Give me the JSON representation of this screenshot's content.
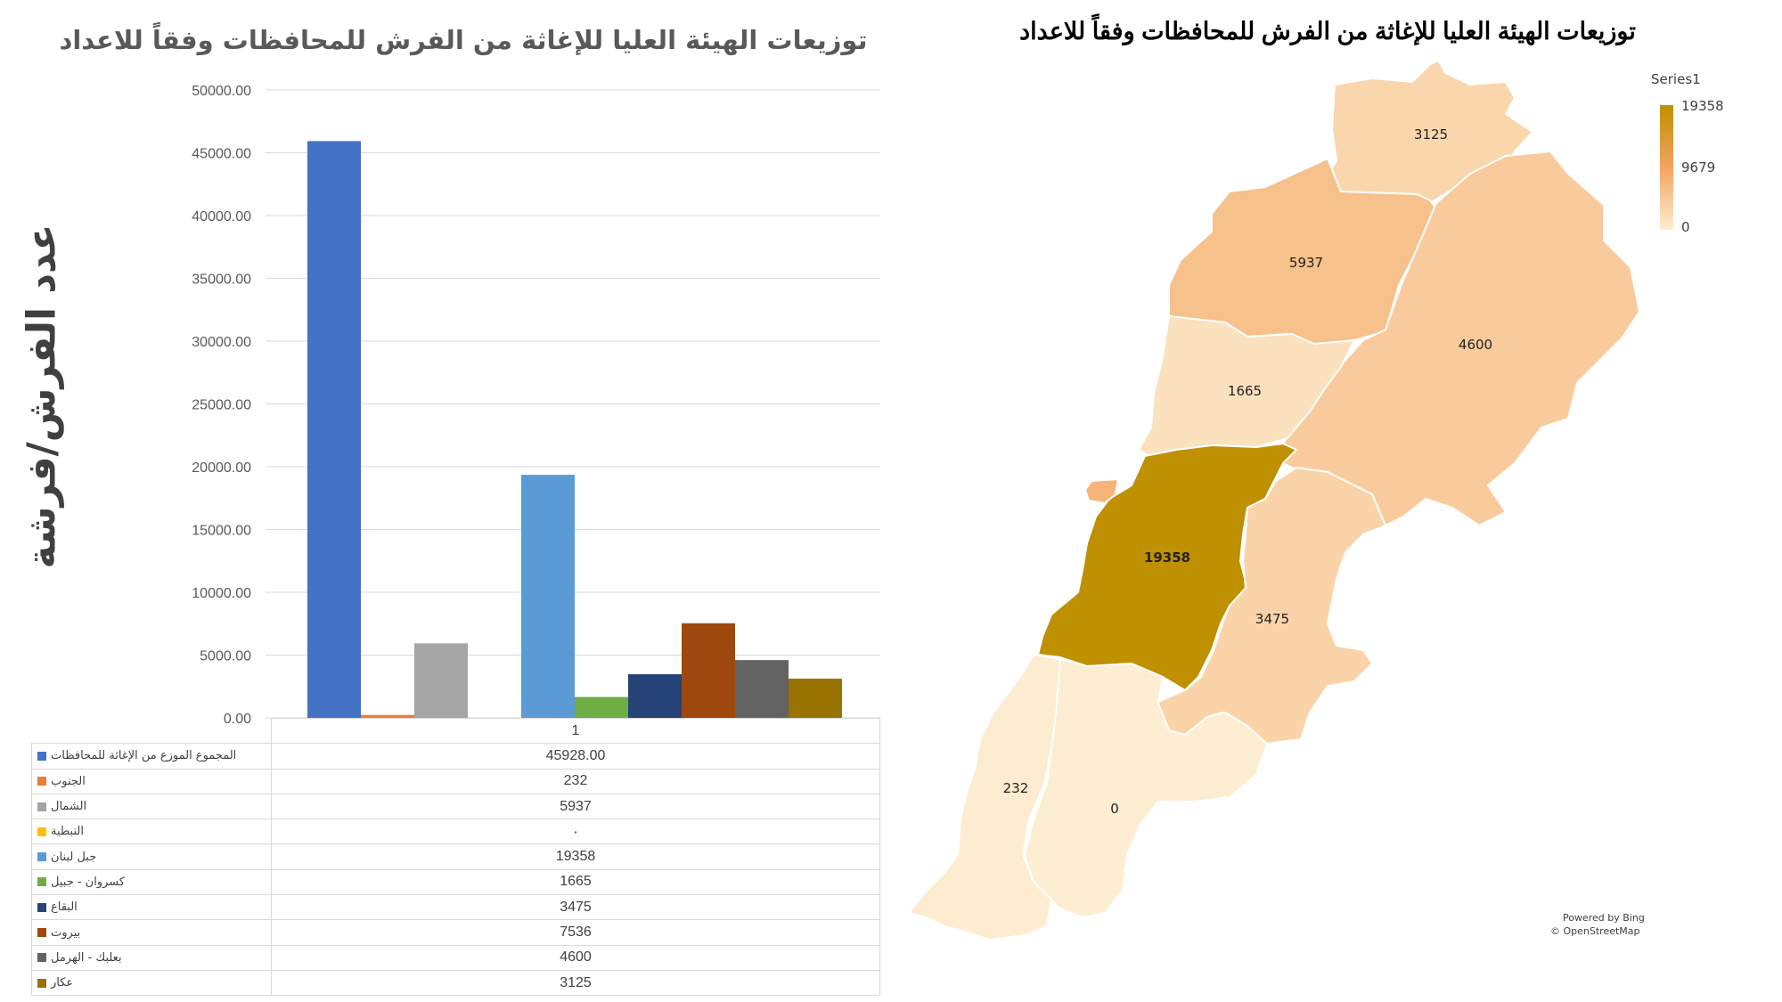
{
  "chart_data": [
    {
      "type": "bar",
      "title": "توزيعات الهيئة العليا للإغاثة من الفرش للمحافظات وفقاً للاعداد",
      "ylabel": "عدد الفرش/فرشة",
      "xlabel": "",
      "categories": [
        "1"
      ],
      "ylim": [
        0,
        50000
      ],
      "yticks": [
        "0.00",
        "5000.00",
        "10000.00",
        "15000.00",
        "20000.00",
        "25000.00",
        "30000.00",
        "35000.00",
        "40000.00",
        "45000.00",
        "50000.00"
      ],
      "grid": true,
      "legend_placement": "data-table",
      "series": [
        {
          "name": "المجموع الموزع من الإغاثة للمحافظات",
          "values": [
            45928
          ],
          "color": "#4472c4",
          "table_value": "45928.00"
        },
        {
          "name": "الجنوب",
          "values": [
            232
          ],
          "color": "#ed7d31",
          "table_value": "232"
        },
        {
          "name": "الشمال",
          "values": [
            5937
          ],
          "color": "#a5a5a5",
          "table_value": "5937"
        },
        {
          "name": "النبطية",
          "values": [
            0
          ],
          "color": "#ffc000",
          "table_value": "٠"
        },
        {
          "name": "جبل لبنان",
          "values": [
            19358
          ],
          "color": "#5b9bd5",
          "table_value": "19358"
        },
        {
          "name": "كسروان - جبيل",
          "values": [
            1665
          ],
          "color": "#70ad47",
          "table_value": "1665"
        },
        {
          "name": "البقاع",
          "values": [
            3475
          ],
          "color": "#264478",
          "table_value": "3475"
        },
        {
          "name": "بيروت",
          "values": [
            7536
          ],
          "color": "#9e480e",
          "table_value": "7536"
        },
        {
          "name": "بعلبك - الهرمل",
          "values": [
            4600
          ],
          "color": "#636363",
          "table_value": "4600"
        },
        {
          "name": "عكار",
          "values": [
            3125
          ],
          "color": "#997300",
          "table_value": "3125"
        }
      ]
    },
    {
      "type": "heatmap",
      "title": "توزيعات الهيئة العليا للإغاثة من الفرش للمحافظات وفقاً للاعداد",
      "legend_title": "Series1",
      "legend_values": [
        "19358",
        "9679",
        "0"
      ],
      "colors": {
        "high": "#bf9000",
        "mid": "#f4a460",
        "low": "#fdeed2"
      },
      "regions": [
        {
          "name": "عكار",
          "value": 3125,
          "label": "3125"
        },
        {
          "name": "الشمال",
          "value": 5937,
          "label": "5937"
        },
        {
          "name": "بعلبك - الهرمل",
          "value": 4600,
          "label": "4600"
        },
        {
          "name": "كسروان - جبيل",
          "value": 1665,
          "label": "1665"
        },
        {
          "name": "جبل لبنان",
          "value": 19358,
          "label": "19358"
        },
        {
          "name": "البقاع",
          "value": 3475,
          "label": "3475"
        },
        {
          "name": "الجنوب",
          "value": 232,
          "label": "232"
        },
        {
          "name": "النبطية",
          "value": 0,
          "label": "0"
        },
        {
          "name": "بيروت",
          "value": 7536,
          "label": ""
        }
      ],
      "credits": [
        "Powered by Bing",
        "© OpenStreetMap"
      ]
    }
  ]
}
